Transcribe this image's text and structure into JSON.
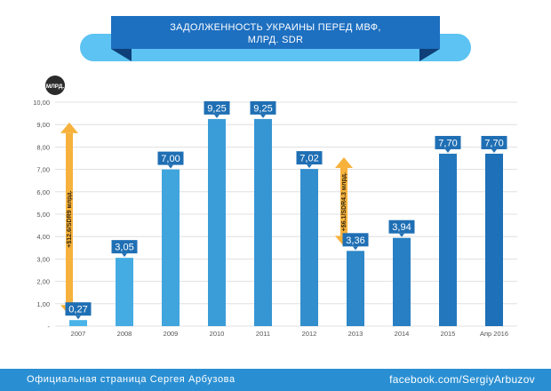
{
  "chart_data": {
    "type": "bar",
    "title": "ЗАДОЛЖЕННОСТЬ УКРАИНЫ ПЕРЕД МВФ,",
    "subtitle": "МЛРД. SDR",
    "unit_badge": "МЛРД.",
    "categories": [
      "2007",
      "2008",
      "2009",
      "2010",
      "2011",
      "2012",
      "2013",
      "2014",
      "2015",
      "Апр 2016"
    ],
    "values": [
      0.27,
      3.05,
      7.0,
      9.25,
      9.25,
      7.02,
      3.36,
      3.94,
      7.7,
      7.7
    ],
    "value_labels": [
      "0,27",
      "3,05",
      "7,00",
      "9,25",
      "9,25",
      "7,02",
      "3,36",
      "3,94",
      "7,70",
      "7,70"
    ],
    "y_ticks": [
      "-",
      "1,00",
      "2,00",
      "3,00",
      "4,00",
      "5,00",
      "6,00",
      "7,00",
      "8,00",
      "9,00",
      "10,00"
    ],
    "ylim": [
      0,
      10
    ],
    "grid": true,
    "annotations": [
      {
        "text": "+$12.6/SDR9 млрд.",
        "from": 0.27,
        "to": 9.25,
        "category": "2007"
      },
      {
        "text": "+$6.1/SDR4.3 млрд.",
        "from": 3.36,
        "to": 7.7,
        "category": "2013"
      }
    ],
    "colors": {
      "bar_light": "#47b4e8",
      "bar_dark": "#1e73b8",
      "label_box": "#1f6fb4",
      "arrow": "#f6b23c",
      "banner": "#1d6fc0",
      "banner_shadow": "#0e3f78",
      "banner_pill": "#5cc3f2"
    }
  },
  "footer": {
    "left": "Официальная страница Сергея Арбузова",
    "right": "facebook.com/SergiyArbuzov"
  }
}
